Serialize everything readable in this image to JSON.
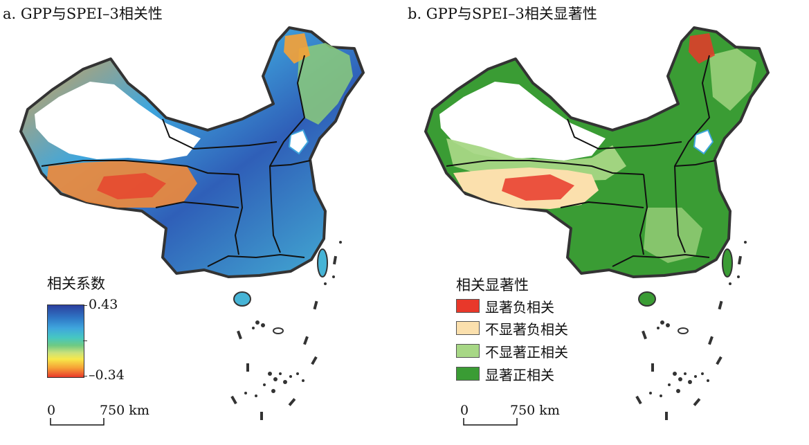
{
  "panel_a": {
    "title": "a. GPP与SPEI–3相关性",
    "legend_title": "相关系数",
    "colorbar": {
      "max_label": "0.43",
      "min_label": "–0.34",
      "max": 0.43,
      "min": -0.34,
      "colors": [
        "#2b3f9e",
        "#2f78c6",
        "#3fa6dd",
        "#46c7c2",
        "#6fca83",
        "#c9e17b",
        "#f7e84a",
        "#f6a236",
        "#e8382a"
      ]
    },
    "scale_bar": {
      "zero": "0",
      "distance": "750 km"
    }
  },
  "panel_b": {
    "title": "b. GPP与SPEI–3相关显著性",
    "legend_title": "相关显著性",
    "classes": [
      {
        "label": "显著负相关",
        "color": "#e8382a"
      },
      {
        "label": "不显著负相关",
        "color": "#fbe0ad"
      },
      {
        "label": "不显著正相关",
        "color": "#a7d785"
      },
      {
        "label": "显著正相关",
        "color": "#3a9c34"
      }
    ],
    "scale_bar": {
      "zero": "0",
      "distance": "750 km"
    }
  }
}
